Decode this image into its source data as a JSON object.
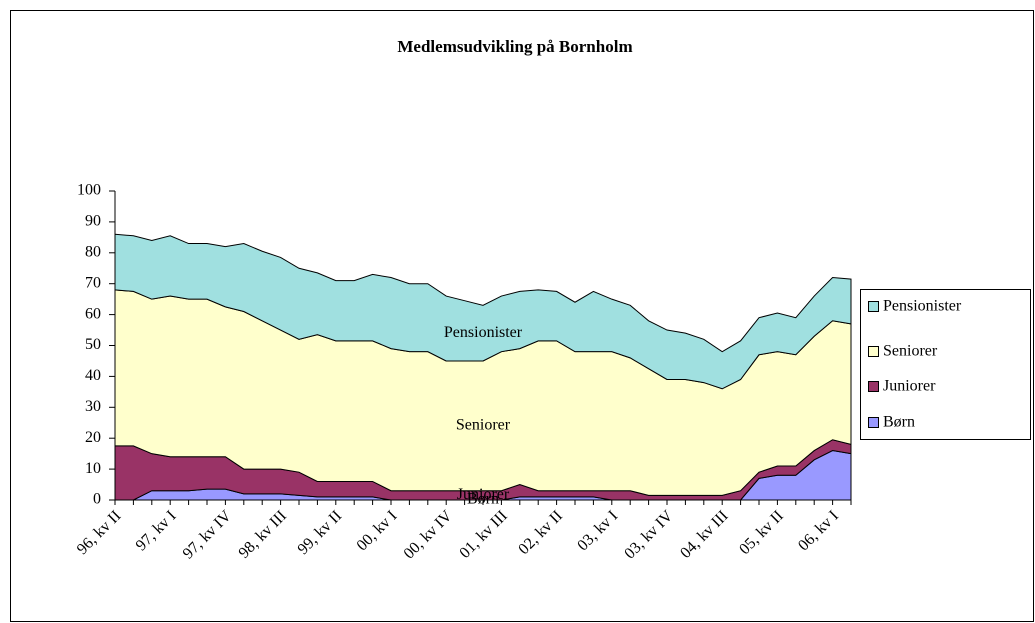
{
  "chart_data": {
    "type": "stacked_area",
    "title": "Medlemsudvikling på Bornholm",
    "categories": [
      "96, kv II",
      null,
      null,
      "97, kv I",
      null,
      null,
      "97, kv IV",
      null,
      null,
      "98, kv III",
      null,
      null,
      "99, kv II",
      null,
      null,
      "00, kv I",
      null,
      null,
      "00, kv IV",
      null,
      null,
      "01, kv III",
      null,
      null,
      "02, kv II",
      null,
      null,
      "03, kv I",
      null,
      null,
      "03, kv IV",
      null,
      null,
      "04, kv III",
      null,
      null,
      "05, kv II",
      null,
      null,
      "06, kv I",
      null
    ],
    "series": [
      {
        "name": "Børn",
        "color": "#9999ff",
        "values": [
          0,
          0,
          3,
          3,
          3,
          3.5,
          3.5,
          2,
          2,
          2,
          1.5,
          1,
          1,
          1,
          1,
          0,
          0,
          0,
          0,
          0,
          0,
          0,
          1,
          1,
          1,
          1,
          1,
          0,
          0,
          0,
          0,
          0,
          0,
          0,
          0,
          7,
          8,
          8,
          13,
          16,
          15
        ]
      },
      {
        "name": "Juniorer",
        "color": "#993366",
        "values": [
          17.5,
          17.5,
          12,
          11,
          11,
          10.5,
          10.5,
          8,
          8,
          8,
          7.5,
          5,
          5,
          5,
          5,
          3,
          3,
          3,
          3,
          3,
          3,
          3,
          4,
          2,
          2,
          2,
          2,
          3,
          3,
          1.5,
          1.5,
          1.5,
          1.5,
          1.5,
          3,
          2,
          3,
          3,
          3,
          3.5,
          3
        ]
      },
      {
        "name": "Seniorer",
        "color": "#ffffcc",
        "values": [
          50.5,
          50,
          50,
          52,
          51,
          51,
          48.5,
          51,
          48,
          45,
          43,
          47.5,
          45.5,
          45.5,
          45.5,
          46,
          45,
          45,
          42,
          42,
          42,
          45,
          44,
          48.5,
          48.5,
          45,
          45,
          45,
          43,
          41,
          37.5,
          37.5,
          36.5,
          34.5,
          36,
          38,
          37,
          36,
          37,
          38.5,
          39
        ]
      },
      {
        "name": "Pensionister",
        "color": "#a0e0e0",
        "values": [
          18,
          18,
          19,
          19.5,
          18,
          18,
          19.5,
          22,
          22.5,
          23.5,
          23,
          20,
          19.5,
          19.5,
          21.5,
          23,
          22,
          22,
          21,
          19.5,
          18,
          18,
          18.5,
          16.5,
          16,
          16,
          19.5,
          17,
          17,
          15.5,
          16,
          15,
          14,
          12,
          12.5,
          12,
          12.5,
          12,
          13,
          14,
          14.5
        ]
      }
    ],
    "ylim": [
      0,
      100
    ],
    "yticks": [
      0,
      10,
      20,
      30,
      40,
      50,
      60,
      70,
      80,
      90,
      100
    ],
    "grid": false,
    "legend": "right"
  }
}
